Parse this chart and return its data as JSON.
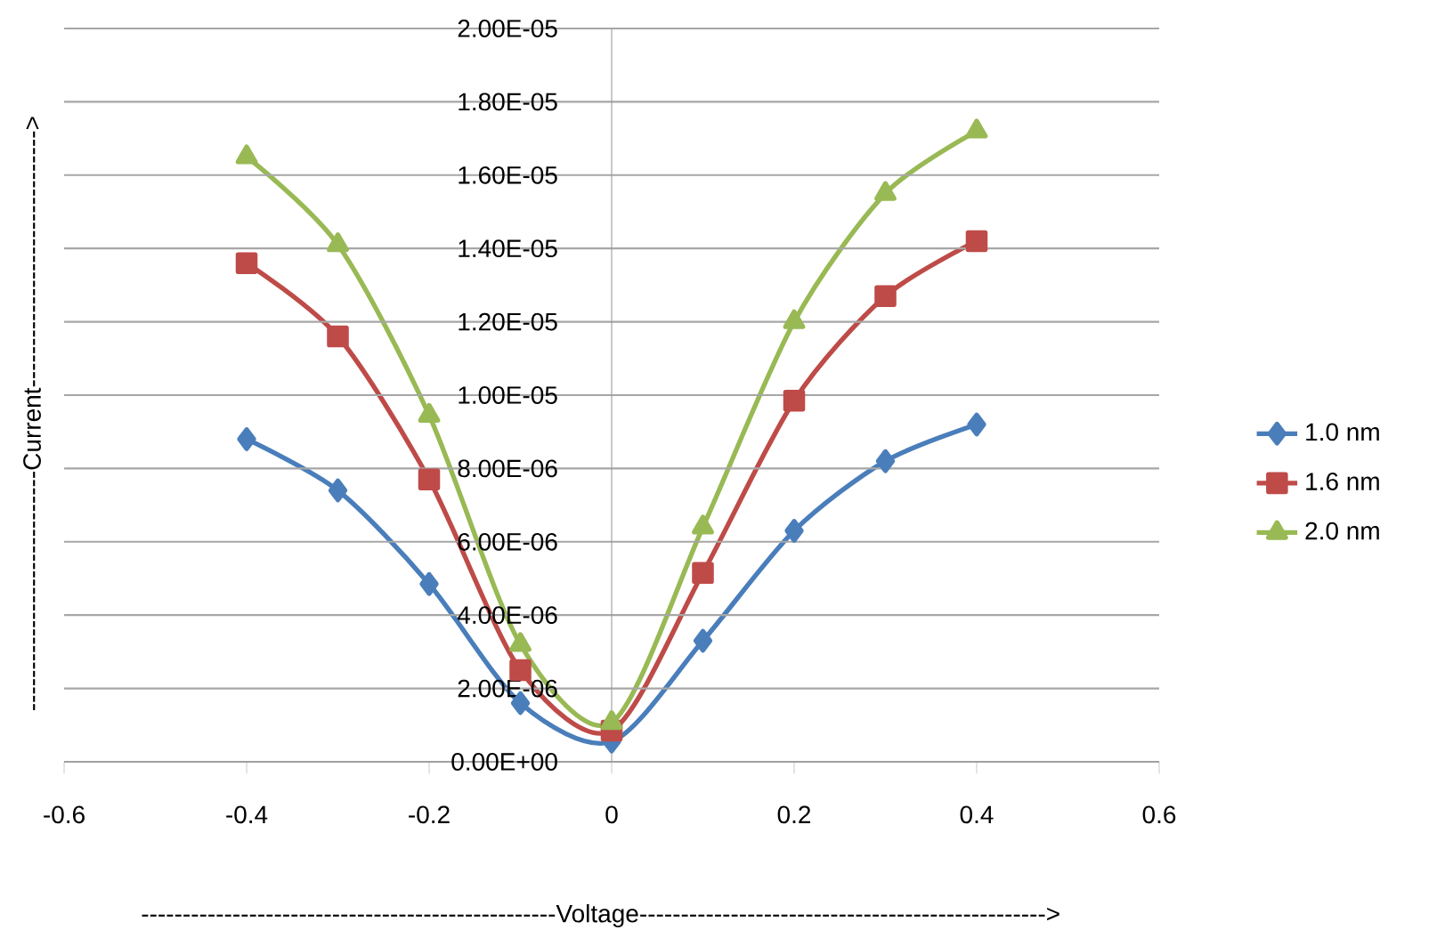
{
  "chart_data": {
    "type": "line",
    "xlabel": "--------------------------------------------------Voltage------------------------------------------------->",
    "ylabel": "-----------------------------Current------------------------------->",
    "x": [
      -0.4,
      -0.3,
      -0.2,
      -0.1,
      0,
      0.1,
      0.2,
      0.3,
      0.4
    ],
    "series": [
      {
        "name": "1.0 nm",
        "color": "#4a7ebb",
        "marker": "diamond",
        "values": [
          8.8e-06,
          7.4e-06,
          4.85e-06,
          1.6e-06,
          5.5e-07,
          3.3e-06,
          6.3e-06,
          8.2e-06,
          9.2e-06
        ]
      },
      {
        "name": "1.6 nm",
        "color": "#be4b48",
        "marker": "square",
        "values": [
          1.36e-05,
          1.16e-05,
          7.7e-06,
          2.5e-06,
          8.5e-07,
          5.15e-06,
          9.85e-06,
          1.27e-05,
          1.42e-05
        ]
      },
      {
        "name": "2.0 nm",
        "color": "#98b954",
        "marker": "triangle",
        "values": [
          1.65e-05,
          1.41e-05,
          9.45e-06,
          3.2e-06,
          1.07e-06,
          6.4e-06,
          1.2e-05,
          1.55e-05,
          1.72e-05
        ]
      }
    ],
    "xlim": [
      -0.6,
      0.6
    ],
    "xticks": [
      -0.6,
      -0.4,
      -0.2,
      0,
      0.2,
      0.4,
      0.6
    ],
    "ylim": [
      0,
      2e-05
    ],
    "yticks": [
      {
        "value": 0,
        "label": "0.00E+00"
      },
      {
        "value": 2e-06,
        "label": "2.00E-06"
      },
      {
        "value": 4e-06,
        "label": "4.00E-06"
      },
      {
        "value": 6e-06,
        "label": "6.00E-06"
      },
      {
        "value": 8e-06,
        "label": "8.00E-06"
      },
      {
        "value": 1e-05,
        "label": "1.00E-05"
      },
      {
        "value": 1.2e-05,
        "label": "1.20E-05"
      },
      {
        "value": 1.4e-05,
        "label": "1.40E-05"
      },
      {
        "value": 1.6e-05,
        "label": "1.60E-05"
      },
      {
        "value": 1.8e-05,
        "label": "1.80E-05"
      },
      {
        "value": 2e-05,
        "label": "2.00E-05"
      }
    ],
    "grid": "y",
    "legend": "right",
    "line_style": "solid"
  }
}
